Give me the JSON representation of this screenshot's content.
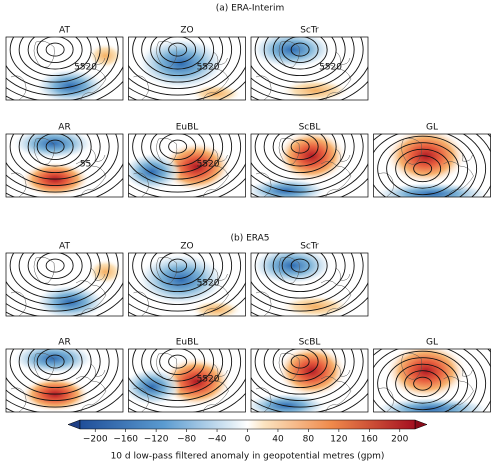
{
  "sections": [
    {
      "title": "(a) ERA-Interim",
      "rows": [
        [
          {
            "label": "AT",
            "contour_labels": [
              "5520"
            ]
          },
          {
            "label": "ZO",
            "contour_labels": [
              "5520"
            ]
          },
          {
            "label": "ScTr",
            "contour_labels": [
              "5520"
            ]
          }
        ],
        [
          {
            "label": "AR",
            "contour_labels": [
              "55"
            ]
          },
          {
            "label": "EuBL",
            "contour_labels": [
              "5520"
            ]
          },
          {
            "label": "ScBL",
            "contour_labels": []
          },
          {
            "label": "GL",
            "contour_labels": []
          }
        ]
      ]
    },
    {
      "title": "(b) ERA5",
      "rows": [
        [
          {
            "label": "AT",
            "contour_labels": []
          },
          {
            "label": "ZO",
            "contour_labels": [
              "5520"
            ]
          },
          {
            "label": "ScTr",
            "contour_labels": []
          }
        ],
        [
          {
            "label": "AR",
            "contour_labels": []
          },
          {
            "label": "EuBL",
            "contour_labels": [
              "5520"
            ]
          },
          {
            "label": "ScBL",
            "contour_labels": []
          },
          {
            "label": "GL",
            "contour_labels": []
          }
        ]
      ]
    }
  ],
  "colorbar": {
    "label": "10 d low-pass filtered anomaly in geopotential metres (gpm)",
    "range": [
      -220,
      220
    ],
    "ticks": [
      {
        "value": -200,
        "label": "−200"
      },
      {
        "value": -160,
        "label": "−160"
      },
      {
        "value": -120,
        "label": "−120"
      },
      {
        "value": -80,
        "label": "−80"
      },
      {
        "value": -40,
        "label": "−40"
      },
      0,
      40,
      80,
      120,
      160,
      200
    ]
  }
}
